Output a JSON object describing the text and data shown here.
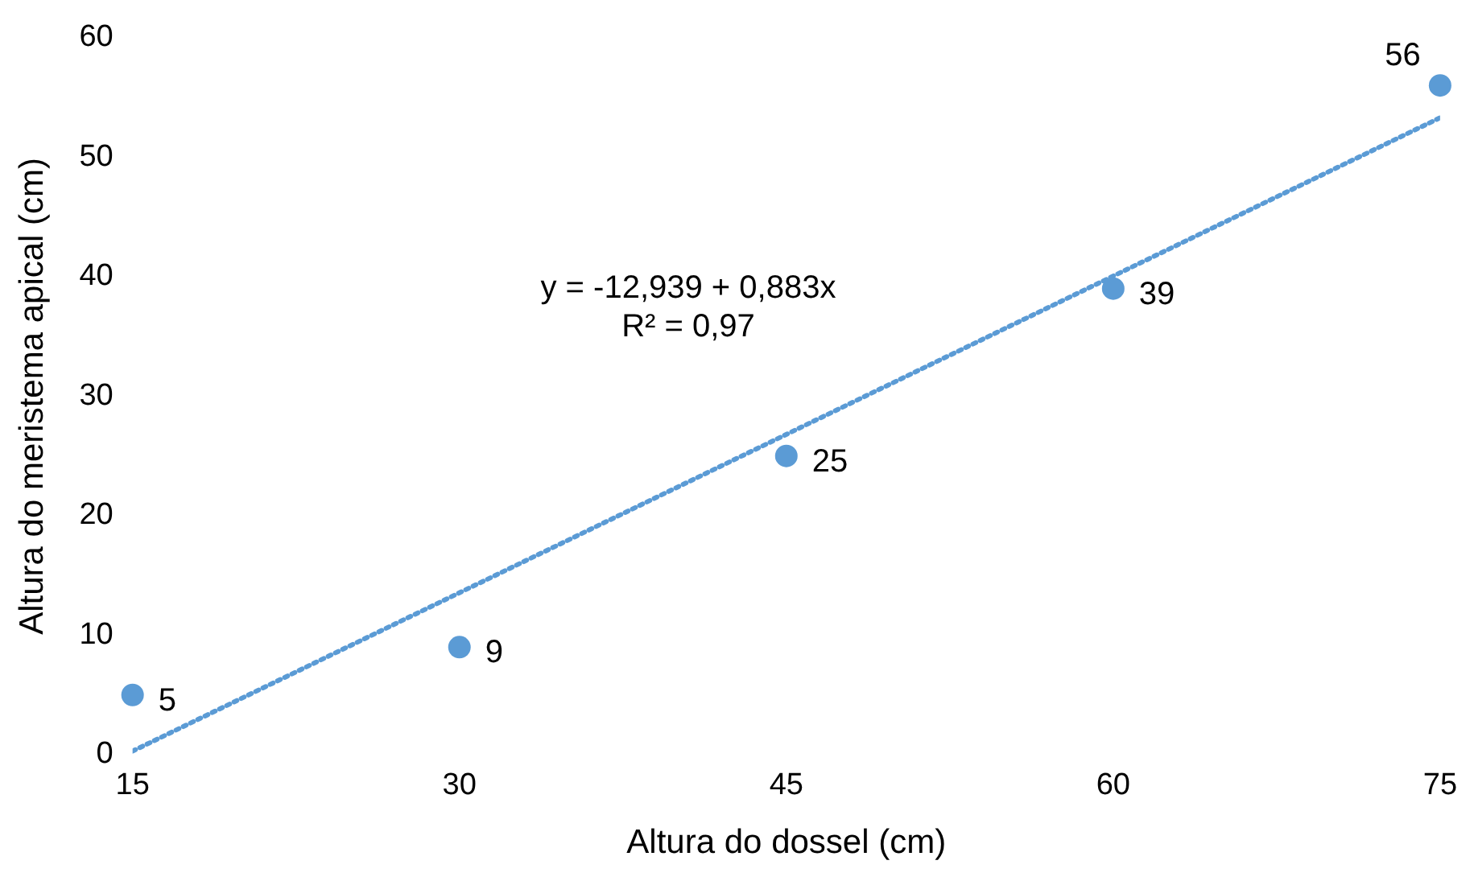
{
  "chart_data": {
    "type": "scatter",
    "xlabel": "Altura do dossel (cm)",
    "ylabel": "Altura do meristema apical (cm)",
    "x": [
      15,
      30,
      45,
      60,
      75
    ],
    "series": [
      {
        "color": "#5b9bd5",
        "values": [
          5,
          9,
          25,
          39,
          56
        ],
        "value_labels": [
          "5",
          "9",
          "25",
          "39",
          "56"
        ],
        "marker": "circle"
      },
      {
        "type": "line",
        "color": "#5b9bd5",
        "x": [
          15,
          75
        ],
        "values": [
          0.3,
          53.3
        ],
        "line_style": "dotted",
        "marker": "none"
      }
    ],
    "annotations": [
      "y = -12,939 + 0,883x",
      "R² = 0,97"
    ],
    "xlim": [
      15,
      75
    ],
    "xticks": [
      15,
      30,
      45,
      60,
      75
    ],
    "ylim": [
      0,
      60
    ],
    "yticks": [
      0,
      10,
      20,
      30,
      40,
      50,
      60
    ],
    "grid": false,
    "legend": false
  }
}
